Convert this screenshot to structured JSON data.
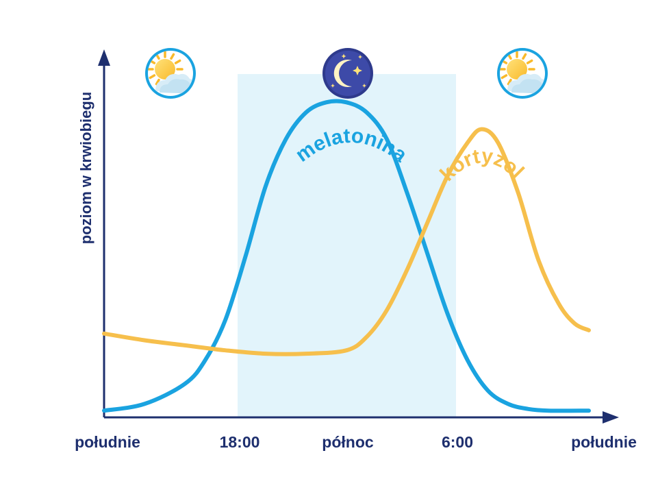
{
  "chart_data": {
    "type": "line",
    "ylabel": "poziom w krwiobiegu",
    "xlabel": "",
    "x_ticks": [
      "południe",
      "18:00",
      "północ",
      "6:00",
      "południe"
    ],
    "night_band": {
      "from": "18:00",
      "to": "6:00"
    },
    "icons": [
      "sun-cloud-icon",
      "moon-stars-icon",
      "sun-cloud-icon"
    ],
    "series": [
      {
        "name": "melatonina",
        "color": "#1aa3e0",
        "points": [
          [
            12,
            2
          ],
          [
            14,
            4
          ],
          [
            16,
            10
          ],
          [
            17,
            17
          ],
          [
            18,
            29
          ],
          [
            19,
            48
          ],
          [
            20,
            69
          ],
          [
            21,
            83
          ],
          [
            22,
            91
          ],
          [
            23,
            94
          ],
          [
            24,
            94
          ],
          [
            25,
            91
          ],
          [
            26,
            83
          ],
          [
            27,
            67
          ],
          [
            28,
            49
          ],
          [
            29,
            31
          ],
          [
            30,
            17
          ],
          [
            31,
            8
          ],
          [
            32,
            4
          ],
          [
            33,
            2.5
          ],
          [
            34,
            2
          ],
          [
            36,
            2
          ]
        ]
      },
      {
        "name": "kortyzol",
        "color": "#f6bf4c",
        "points": [
          [
            12,
            25
          ],
          [
            14,
            23
          ],
          [
            16,
            21.5
          ],
          [
            18,
            20
          ],
          [
            20,
            19
          ],
          [
            22,
            19
          ],
          [
            24,
            20
          ],
          [
            25,
            24
          ],
          [
            26,
            32
          ],
          [
            27,
            44
          ],
          [
            28,
            58
          ],
          [
            29,
            72
          ],
          [
            30,
            82
          ],
          [
            30.7,
            86
          ],
          [
            31.5,
            82
          ],
          [
            32.5,
            67
          ],
          [
            33.5,
            47
          ],
          [
            34.5,
            34
          ],
          [
            35.3,
            28
          ],
          [
            36,
            26
          ]
        ]
      }
    ]
  }
}
